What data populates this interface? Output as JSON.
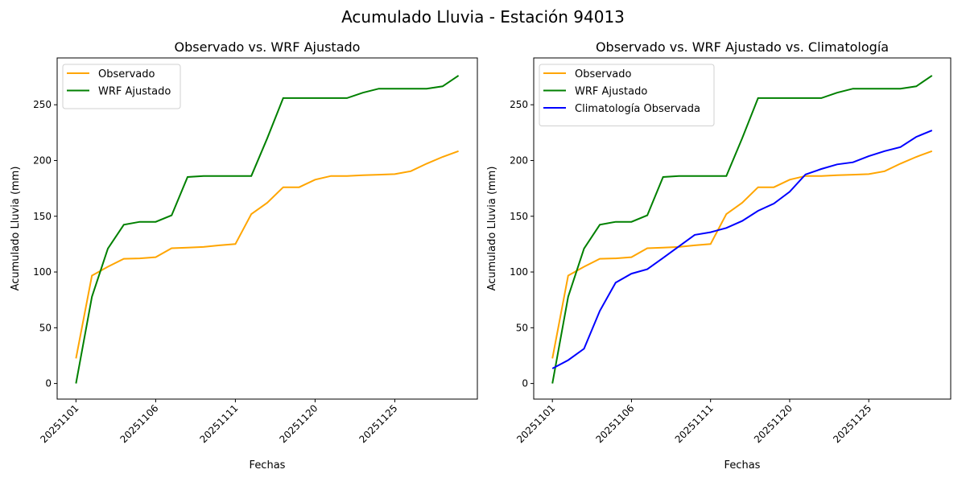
{
  "suptitle": "Acumulado Lluvia - Estación 94013",
  "chart_data": [
    {
      "type": "line",
      "title": "Observado vs. WRF Ajustado",
      "xlabel": "Fechas",
      "ylabel": "Acumulado Lluvia (mm)",
      "ylim": [
        -14,
        292
      ],
      "yticks": [
        0,
        50,
        100,
        150,
        200,
        250
      ],
      "xtick_indices": [
        0,
        5,
        10,
        15,
        20
      ],
      "legend": "top-left",
      "grid": false,
      "categories": [
        "20251101",
        "20251102",
        "20251103",
        "20251104",
        "20251105",
        "20251106",
        "20251107",
        "20251108",
        "20251109",
        "20251110",
        "20251111",
        "20251112",
        "20251113",
        "20251114",
        "20251115",
        "20251120",
        "20251121",
        "20251122",
        "20251123",
        "20251124",
        "20251125",
        "20251126",
        "20251127",
        "20251128",
        "20251129"
      ],
      "series": [
        {
          "name": "Observado",
          "color": "#ffa500",
          "values": [
            22.5,
            96.8,
            104.7,
            111.9,
            112.2,
            113.3,
            121.3,
            121.8,
            122.5,
            123.9,
            125.1,
            152,
            162.1,
            176,
            176,
            182.8,
            186.1,
            186.1,
            186.8,
            187.3,
            187.8,
            190.4,
            197.2,
            203.2,
            208.4
          ]
        },
        {
          "name": "WRF Ajustado",
          "color": "#008000",
          "values": [
            0,
            77.8,
            121,
            142.4,
            145,
            145,
            150.8,
            185.2,
            186.1,
            186.1,
            186.1,
            186.1,
            220,
            256,
            256,
            256,
            256,
            256,
            260.8,
            264.4,
            264.4,
            264.4,
            264.4,
            266.5,
            276.2
          ]
        }
      ]
    },
    {
      "type": "line",
      "title": "Observado vs. WRF Ajustado vs. Climatología",
      "xlabel": "Fechas",
      "ylabel": "Acumulado Lluvia (mm)",
      "ylim": [
        -14,
        292
      ],
      "yticks": [
        0,
        50,
        100,
        150,
        200,
        250
      ],
      "xtick_indices": [
        0,
        5,
        10,
        15,
        20
      ],
      "legend": "top-left",
      "grid": false,
      "categories": [
        "20251101",
        "20251102",
        "20251103",
        "20251104",
        "20251105",
        "20251106",
        "20251107",
        "20251108",
        "20251109",
        "20251110",
        "20251111",
        "20251112",
        "20251113",
        "20251114",
        "20251115",
        "20251120",
        "20251121",
        "20251122",
        "20251123",
        "20251124",
        "20251125",
        "20251126",
        "20251127",
        "20251128",
        "20251129"
      ],
      "series": [
        {
          "name": "Observado",
          "color": "#ffa500",
          "values": [
            22.5,
            96.8,
            104.7,
            111.9,
            112.2,
            113.3,
            121.3,
            121.8,
            122.5,
            123.9,
            125.1,
            152,
            162.1,
            176,
            176,
            182.8,
            186.1,
            186.1,
            186.8,
            187.3,
            187.8,
            190.4,
            197.2,
            203.2,
            208.4
          ]
        },
        {
          "name": "WRF Ajustado",
          "color": "#008000",
          "values": [
            0,
            77.8,
            121,
            142.4,
            145,
            145,
            150.8,
            185.2,
            186.1,
            186.1,
            186.1,
            186.1,
            220,
            256,
            256,
            256,
            256,
            256,
            260.8,
            264.4,
            264.4,
            264.4,
            264.4,
            266.5,
            276.2
          ]
        },
        {
          "name": "Climatología Observada",
          "color": "#0000ff",
          "values": [
            13.4,
            20.9,
            31.2,
            65.1,
            90.5,
            98.5,
            102.5,
            112.6,
            123,
            133.3,
            135.7,
            139.5,
            145.8,
            154.9,
            161.4,
            172,
            187.5,
            192.4,
            196.5,
            198.4,
            203.9,
            208.4,
            212,
            221.2,
            227
          ]
        }
      ]
    }
  ]
}
